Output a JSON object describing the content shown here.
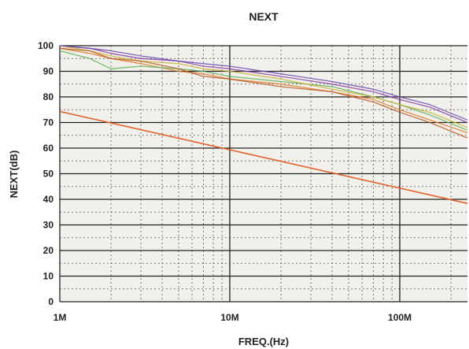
{
  "chart_data": {
    "type": "line",
    "title": "NEXT",
    "xlabel": "FREQ.(Hz)",
    "ylabel": "NEXT(dB)",
    "x_scale": "log",
    "xlim": [
      1000000,
      250000000
    ],
    "ylim": [
      0,
      100
    ],
    "x_ticks": [
      {
        "value": 1000000,
        "label": "1M"
      },
      {
        "value": 10000000,
        "label": "10M"
      },
      {
        "value": 100000000,
        "label": "100M"
      }
    ],
    "y_ticks": [
      0,
      10,
      20,
      30,
      40,
      50,
      60,
      70,
      80,
      90,
      100
    ],
    "grid": true,
    "colors": {
      "plot_background": "#f1f0ea",
      "major_grid": "#222222",
      "minor_grid": "#555555",
      "limit_line": "#e0602e",
      "pair_colors": [
        "#e07a2c",
        "#8a3fa8",
        "#5fae5a",
        "#c7b53c",
        "#b85c2a",
        "#6a4cb3"
      ]
    },
    "series": [
      {
        "role": "limit",
        "color": "#e0602e",
        "x": [
          1000000,
          250000000
        ],
        "y": [
          74.3,
          38.4
        ]
      },
      {
        "role": "measured",
        "color": "#e07a2c",
        "x": [
          1000000,
          1500000,
          2000000,
          3000000,
          5000000,
          7000000,
          10000000,
          20000000,
          40000000,
          70000000,
          100000000,
          150000000,
          250000000
        ],
        "y": [
          99,
          97,
          95,
          93,
          90,
          89,
          87,
          85,
          82,
          79,
          75,
          71,
          66
        ]
      },
      {
        "role": "measured",
        "color": "#8a3fa8",
        "x": [
          1000000,
          1500000,
          2000000,
          3000000,
          5000000,
          7000000,
          10000000,
          20000000,
          40000000,
          70000000,
          100000000,
          150000000,
          250000000
        ],
        "y": [
          100,
          99,
          97,
          95,
          94,
          92,
          91,
          88,
          85,
          82,
          79,
          76,
          70
        ]
      },
      {
        "role": "measured",
        "color": "#5fae5a",
        "x": [
          1000000,
          1500000,
          2000000,
          3000000,
          5000000,
          7000000,
          10000000,
          20000000,
          40000000,
          70000000,
          100000000,
          150000000,
          250000000
        ],
        "y": [
          98,
          95,
          91,
          92,
          91,
          90,
          88,
          86,
          84,
          80,
          77,
          73,
          67
        ]
      },
      {
        "role": "measured",
        "color": "#c7b53c",
        "x": [
          1000000,
          1500000,
          2000000,
          3000000,
          5000000,
          7000000,
          10000000,
          20000000,
          40000000,
          70000000,
          100000000,
          150000000,
          250000000
        ],
        "y": [
          100,
          98,
          96,
          94,
          93,
          91,
          90,
          87,
          83,
          80,
          77,
          74,
          68
        ]
      },
      {
        "role": "measured",
        "color": "#b85c2a",
        "x": [
          1000000,
          1500000,
          2000000,
          3000000,
          5000000,
          7000000,
          10000000,
          20000000,
          40000000,
          70000000,
          100000000,
          150000000,
          250000000
        ],
        "y": [
          99,
          98,
          95,
          94,
          91,
          88,
          87,
          84,
          82,
          78,
          74,
          70,
          64
        ]
      },
      {
        "role": "measured",
        "color": "#6a4cb3",
        "x": [
          1000000,
          1500000,
          2000000,
          3000000,
          5000000,
          7000000,
          10000000,
          20000000,
          40000000,
          70000000,
          100000000,
          150000000,
          250000000
        ],
        "y": [
          100,
          99,
          98,
          96,
          94,
          93,
          92,
          89,
          86,
          83,
          80,
          77,
          71
        ]
      }
    ]
  }
}
